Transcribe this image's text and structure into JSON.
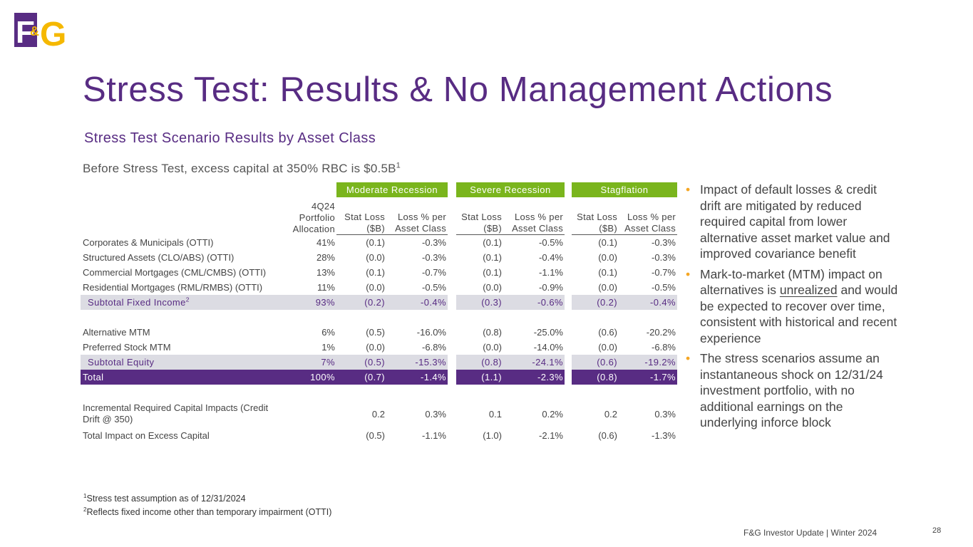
{
  "logo": {
    "f": "F",
    "amp": "&",
    "g": "G"
  },
  "title": "Stress Test: Results & No Management Actions",
  "subtitle": "Stress Test Scenario Results by Asset Class",
  "intro": {
    "text": "Before Stress Test, excess capital at 350% RBC is $0.5B",
    "note": "1"
  },
  "table": {
    "groups": [
      "Moderate Recession",
      "Severe Recession",
      "Stagflation"
    ],
    "headers": [
      "4Q24 Portfolio Allocation",
      "Stat Loss ($B)",
      "Loss % per Asset Class",
      "Stat Loss ($B)",
      "Loss % per Asset Class",
      "Stat Loss ($B)",
      "Loss % per Asset Class"
    ],
    "rows": [
      {
        "label": "Corporates & Municipals (OTTI)",
        "cells": [
          "41%",
          "(0.1)",
          "-0.3%",
          "(0.1)",
          "-0.5%",
          "(0.1)",
          "-0.3%"
        ]
      },
      {
        "label": "Structured Assets (CLO/ABS) (OTTI)",
        "cells": [
          "28%",
          "(0.0)",
          "-0.3%",
          "(0.1)",
          "-0.4%",
          "(0.0)",
          "-0.3%"
        ]
      },
      {
        "label": "Commercial Mortgages (CML/CMBS) (OTTI)",
        "cells": [
          "13%",
          "(0.1)",
          "-0.7%",
          "(0.1)",
          "-1.1%",
          "(0.1)",
          "-0.7%"
        ]
      },
      {
        "label": "Residential Mortgages (RML/RMBS) (OTTI)",
        "cells": [
          "11%",
          "(0.0)",
          "-0.5%",
          "(0.0)",
          "-0.9%",
          "(0.0)",
          "-0.5%"
        ]
      },
      {
        "label": "Subtotal Fixed Income",
        "note": "2",
        "cells": [
          "93%",
          "(0.2)",
          "-0.4%",
          "(0.3)",
          "-0.6%",
          "(0.2)",
          "-0.4%"
        ]
      },
      {
        "label": "Alternative MTM",
        "cells": [
          "6%",
          "(0.5)",
          "-16.0%",
          "(0.8)",
          "-25.0%",
          "(0.6)",
          "-20.2%"
        ]
      },
      {
        "label": "Preferred Stock MTM",
        "cells": [
          "1%",
          "(0.0)",
          "-6.8%",
          "(0.0)",
          "-14.0%",
          "(0.0)",
          "-6.8%"
        ]
      },
      {
        "label": "Subtotal Equity",
        "cells": [
          "7%",
          "(0.5)",
          "-15.3%",
          "(0.8)",
          "-24.1%",
          "(0.6)",
          "-19.2%"
        ]
      },
      {
        "label": "Total",
        "cells": [
          "100%",
          "(0.7)",
          "-1.4%",
          "(1.1)",
          "-2.3%",
          "(0.8)",
          "-1.7%"
        ]
      },
      {
        "label": "Incremental Required Capital Impacts (Credit Drift @ 350)",
        "cells": [
          null,
          "0.2",
          "0.3%",
          "0.1",
          "0.2%",
          "0.2",
          "0.3%"
        ]
      },
      {
        "label": "Total Impact on Excess Capital",
        "cells": [
          null,
          "(0.5)",
          "-1.1%",
          "(1.0)",
          "-2.1%",
          "(0.6)",
          "-1.3%"
        ]
      }
    ]
  },
  "bullets": [
    [
      "Impact of default losses & credit drift are mitigated by reduced required capital from lower alternative asset market value and improved covariance benefit"
    ],
    [
      "Mark-to-market (MTM) impact on alternatives is ",
      "unrealized",
      " and would be expected to recover over time, consistent with historical and recent experience"
    ],
    [
      "The stress scenarios assume an instantaneous shock on 12/31/24 investment portfolio, with no additional earnings on the underlying inforce block"
    ]
  ],
  "footnotes": [
    {
      "mark": "1",
      "text": "Stress test assumption as of 12/31/2024"
    },
    {
      "mark": "2",
      "text": "Reflects fixed income other than temporary impairment (OTTI)"
    }
  ],
  "footer": "F&G Investor Update | Winter 2024",
  "page": "28"
}
